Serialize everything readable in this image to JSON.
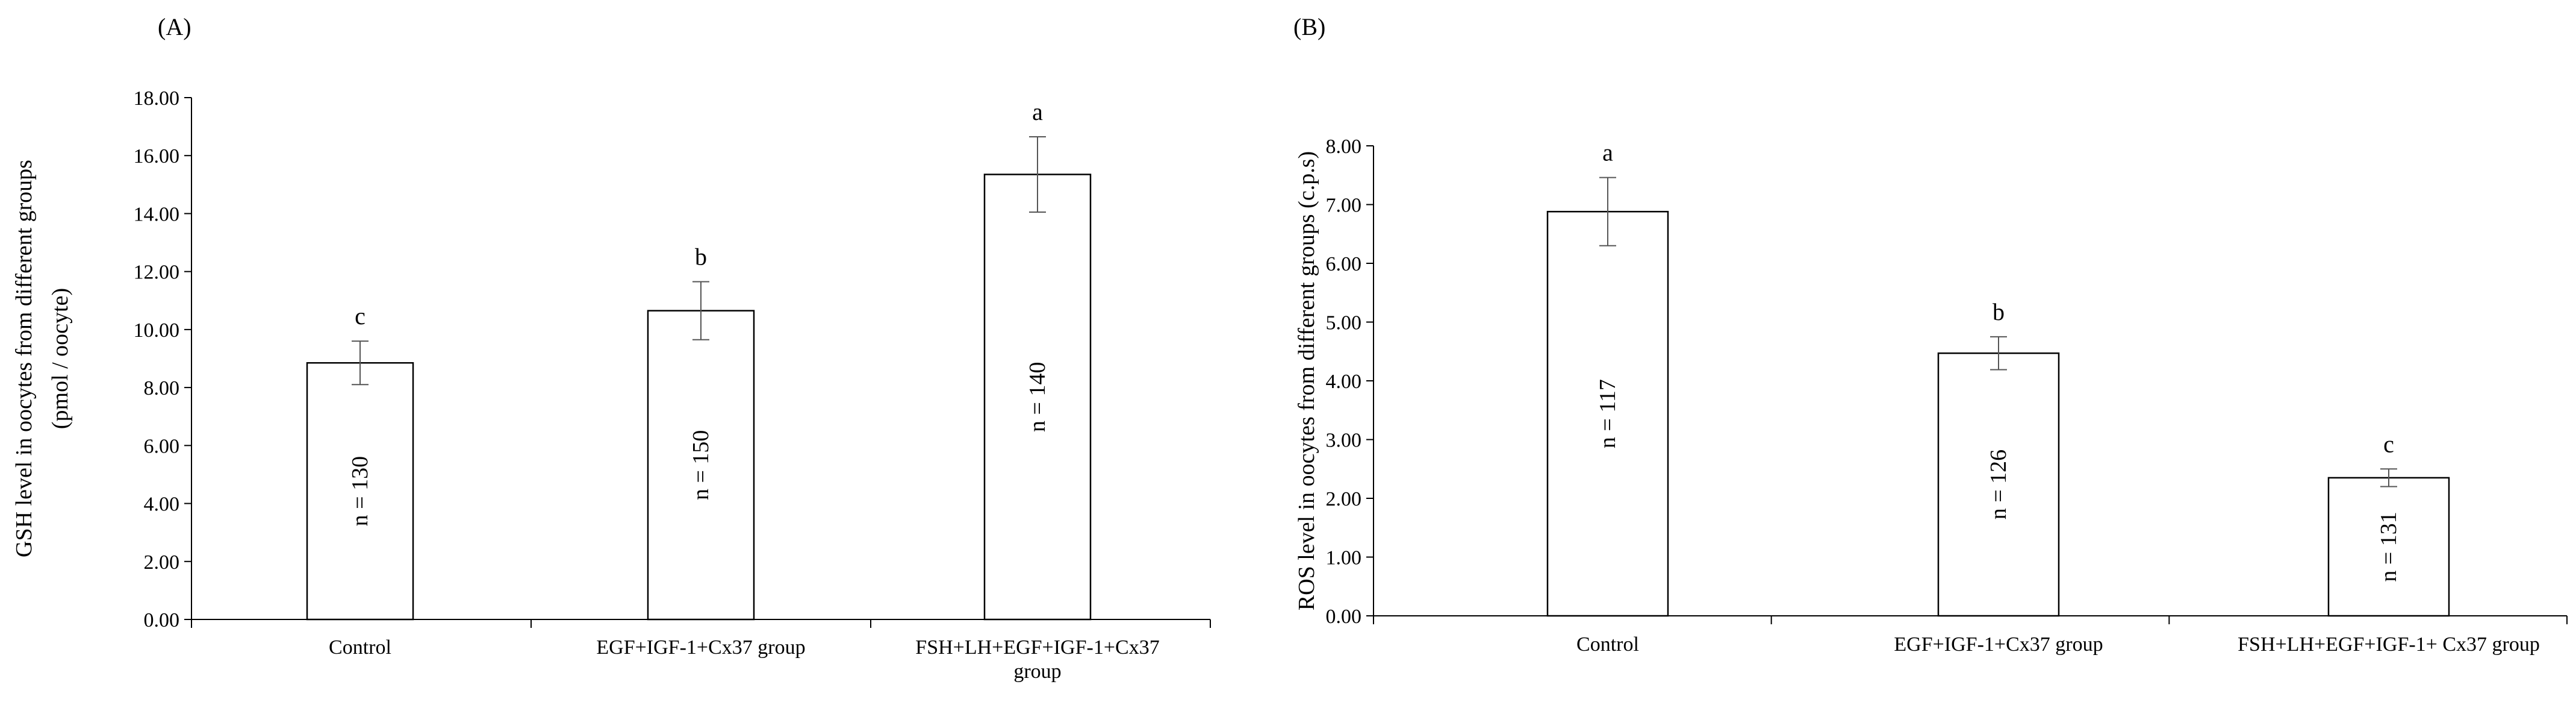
{
  "chart_data": [
    {
      "type": "bar",
      "panel_label": "(A)",
      "ylabel_line1": "GSH level in oocytes from different groups",
      "ylabel_line2": "(pmol / oocyte)",
      "ylim": [
        0,
        18
      ],
      "yticks": [
        "0.00",
        "2.00",
        "4.00",
        "6.00",
        "8.00",
        "10.00",
        "12.00",
        "14.00",
        "16.00",
        "18.00"
      ],
      "categories": [
        [
          "Control"
        ],
        [
          "EGF+IGF-1+Cx37 group"
        ],
        [
          "FSH+LH+EGF+IGF-1+Cx37",
          "group"
        ]
      ],
      "values": [
        8.85,
        10.65,
        15.35
      ],
      "errors": [
        0.75,
        1.0,
        1.3
      ],
      "significance": [
        "c",
        "b",
        "a"
      ],
      "n_labels": [
        "n = 130",
        "n = 150",
        "n = 140"
      ],
      "grid": false,
      "bar_color": "#ffffff"
    },
    {
      "type": "bar",
      "panel_label": "(B)",
      "ylabel_line1": "ROS level in oocytes from different groups (c.p.s)",
      "ylabel_line2": "",
      "ylim": [
        0,
        8
      ],
      "yticks": [
        "0.00",
        "1.00",
        "2.00",
        "3.00",
        "4.00",
        "5.00",
        "6.00",
        "7.00",
        "8.00"
      ],
      "categories": [
        [
          "Control"
        ],
        [
          "EGF+IGF-1+Cx37 group"
        ],
        [
          "FSH+LH+EGF+IGF-1+ Cx37 group"
        ]
      ],
      "values": [
        6.88,
        4.47,
        2.35
      ],
      "errors": [
        0.58,
        0.28,
        0.15
      ],
      "significance": [
        "a",
        "b",
        "c"
      ],
      "n_labels": [
        "n = 117",
        "n = 126",
        "n = 131"
      ],
      "grid": false,
      "bar_color": "#ffffff"
    }
  ]
}
